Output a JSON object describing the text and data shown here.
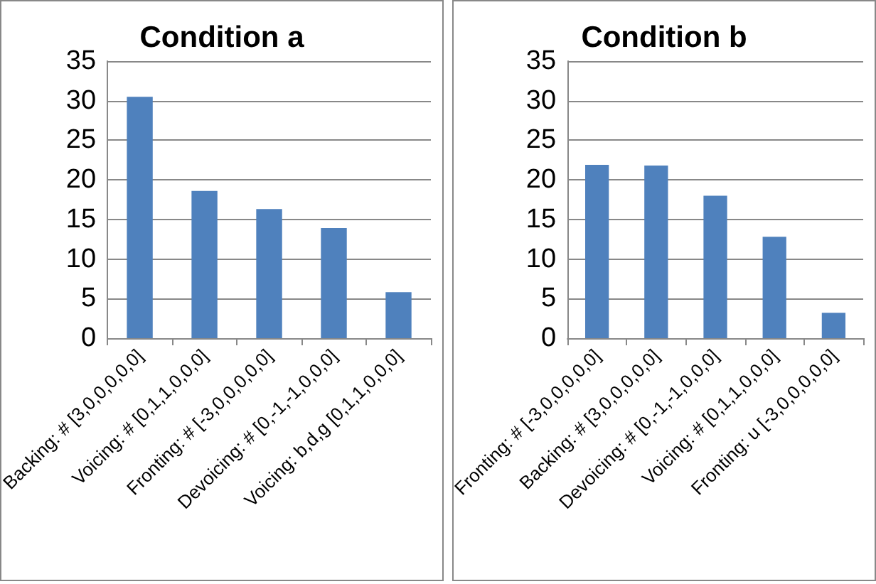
{
  "chart_data": [
    {
      "type": "bar",
      "title": "Condition a",
      "categories": [
        "Backing: # [3,0,0,0,0,0]",
        "Voicing: # [0,1,1,0,0,0]",
        "Fronting: # [-3,0,0,0,0,0]",
        "Devoicing: # [0,-1,-1,0,0,0]",
        "Voicing: b,d,g [0,1,1,0,0,0]"
      ],
      "values": [
        30.5,
        18.6,
        16.3,
        13.9,
        5.8
      ],
      "color": "#4f81bd",
      "ylim": [
        0,
        35
      ],
      "yticks": [
        0,
        5,
        10,
        15,
        20,
        25,
        30,
        35
      ],
      "grid": "y"
    },
    {
      "type": "bar",
      "title": "Condition b",
      "categories": [
        "Fronting: # [-3,0,0,0,0,0]",
        "Backing: # [3,0,0,0,0,0]",
        "Devoicing: # [0,-1,-1,0,0,0]",
        "Voicing: # [0,1,1,0,0,0]",
        "Fronting: u [-3,0,0,0,0,0]"
      ],
      "values": [
        21.9,
        21.8,
        18.0,
        12.8,
        3.2
      ],
      "color": "#4f81bd",
      "ylim": [
        0,
        35
      ],
      "yticks": [
        0,
        5,
        10,
        15,
        20,
        25,
        30,
        35
      ],
      "grid": "y"
    }
  ]
}
